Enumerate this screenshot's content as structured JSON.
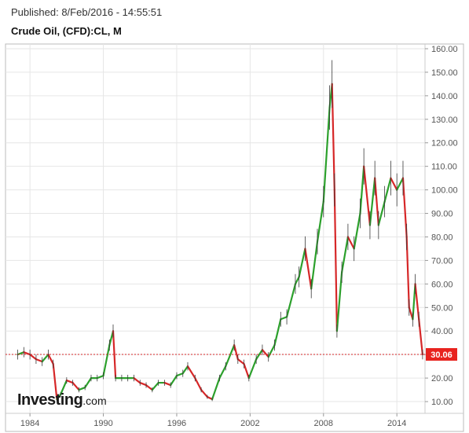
{
  "header": {
    "published": "Published: 8/Feb/2016 - 14:55:51",
    "title": "Crude Oil, (CFD):CL, M"
  },
  "brand": {
    "name": "Investing",
    "suffix": ".com"
  },
  "colors": {
    "up": "#2ca02c",
    "down": "#d62728",
    "current_line": "#d62728",
    "current_label_bg": "#e8231f",
    "grid": "#e6e6e6"
  },
  "chart_data": {
    "type": "line",
    "title": "Crude Oil, (CFD):CL, M",
    "xlabel": "",
    "ylabel": "",
    "x_ticks": [
      "1984",
      "1990",
      "1996",
      "2002",
      "2008",
      "2014"
    ],
    "y_ticks": [
      "10.00",
      "20.00",
      "30.00",
      "40.00",
      "50.00",
      "60.00",
      "70.00",
      "80.00",
      "90.00",
      "100.00",
      "110.00",
      "120.00",
      "130.00",
      "140.00",
      "150.00",
      "160.00"
    ],
    "xlim": [
      1982.0,
      2016.3
    ],
    "ylim": [
      5,
      162
    ],
    "grid": true,
    "current_value": 30.06,
    "current_label": "30.06",
    "series": [
      {
        "x": [
          1983.0,
          1983.5,
          1984.0,
          1984.5,
          1985.0,
          1985.5,
          1985.9,
          1986.2,
          1986.5,
          1987.0,
          1987.5,
          1988.0,
          1988.5,
          1989.0,
          1989.5,
          1990.0,
          1990.5,
          1990.8,
          1991.0,
          1991.5,
          1992.0,
          1992.5,
          1993.0,
          1993.5,
          1994.0,
          1994.5,
          1995.0,
          1995.5,
          1996.0,
          1996.5,
          1996.9,
          1997.5,
          1998.0,
          1998.5,
          1998.9,
          1999.5,
          2000.0,
          2000.7,
          2001.0,
          2001.5,
          2001.9,
          2002.5,
          2003.0,
          2003.5,
          2004.0,
          2004.5,
          2005.0,
          2005.7,
          2006.0,
          2006.5,
          2007.0,
          2007.5,
          2008.0,
          2008.5,
          2008.7,
          2008.9,
          2009.1,
          2009.5,
          2010.0,
          2010.5,
          2011.0,
          2011.3,
          2011.8,
          2012.2,
          2012.5,
          2013.0,
          2013.5,
          2014.0,
          2014.5,
          2014.8,
          2015.0,
          2015.3,
          2015.5,
          2015.8,
          2016.1
        ],
        "values": [
          30,
          31,
          30,
          28,
          27,
          30,
          26,
          11,
          13,
          19,
          18,
          15,
          16,
          20,
          20,
          21,
          34,
          40,
          20,
          20,
          20,
          20,
          18,
          17,
          15,
          18,
          18,
          17,
          21,
          22,
          25,
          20,
          15,
          12,
          11,
          20,
          25,
          34,
          28,
          26,
          20,
          28,
          32,
          29,
          34,
          45,
          46,
          60,
          63,
          75,
          58,
          78,
          95,
          135,
          145,
          100,
          40,
          65,
          80,
          75,
          90,
          110,
          85,
          105,
          85,
          95,
          105,
          100,
          105,
          80,
          50,
          45,
          60,
          45,
          30.06
        ]
      }
    ]
  }
}
